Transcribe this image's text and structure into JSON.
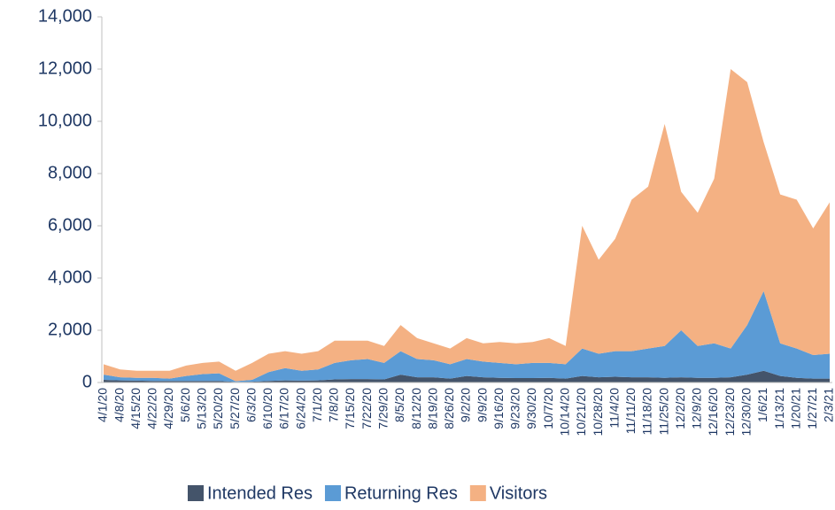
{
  "chart_data": {
    "type": "stacked_area",
    "categories": [
      "4/1/20",
      "4/8/20",
      "4/15/20",
      "4/22/20",
      "4/29/20",
      "5/6/20",
      "5/13/20",
      "5/20/20",
      "5/27/20",
      "6/3/20",
      "6/10/20",
      "6/17/20",
      "6/24/20",
      "7/1/20",
      "7/8/20",
      "7/15/20",
      "7/22/20",
      "7/29/20",
      "8/5/20",
      "8/12/20",
      "8/19/20",
      "8/26/20",
      "9/2/20",
      "9/9/20",
      "9/16/20",
      "9/23/20",
      "9/30/20",
      "10/7/20",
      "10/14/20",
      "10/21/20",
      "10/28/20",
      "11/4/20",
      "11/11/20",
      "11/18/20",
      "11/25/20",
      "12/2/20",
      "12/9/20",
      "12/16/20",
      "12/23/20",
      "12/30/20",
      "1/6/21",
      "1/13/21",
      "1/20/21",
      "1/27/21",
      "2/3/21"
    ],
    "series": [
      {
        "name": "Intended Res",
        "color": "#44546a",
        "values": [
          100,
          80,
          70,
          60,
          60,
          60,
          60,
          60,
          20,
          30,
          60,
          80,
          70,
          80,
          120,
          130,
          130,
          120,
          300,
          200,
          200,
          150,
          250,
          200,
          180,
          170,
          170,
          180,
          150,
          250,
          200,
          220,
          200,
          200,
          180,
          200,
          180,
          180,
          200,
          300,
          450,
          250,
          180,
          150,
          150
        ]
      },
      {
        "name": "Returning Res",
        "color": "#5b9bd5",
        "values": [
          200,
          120,
          110,
          120,
          90,
          190,
          260,
          290,
          30,
          70,
          340,
          470,
          380,
          420,
          630,
          720,
          770,
          630,
          900,
          700,
          650,
          550,
          650,
          600,
          570,
          530,
          580,
          570,
          550,
          1050,
          900,
          980,
          1000,
          1100,
          1220,
          1800,
          1220,
          1320,
          1100,
          1900,
          3050,
          1250,
          1120,
          900,
          950
        ]
      },
      {
        "name": "Visitors",
        "color": "#f4b183",
        "values": [
          400,
          300,
          270,
          270,
          300,
          400,
          430,
          450,
          400,
          650,
          700,
          650,
          650,
          700,
          850,
          750,
          700,
          650,
          1000,
          800,
          650,
          600,
          800,
          700,
          800,
          800,
          800,
          950,
          700,
          4700,
          3600,
          4300,
          5800,
          6200,
          8500,
          5300,
          5100,
          6300,
          10700,
          9300,
          5700,
          5700,
          5700,
          4850,
          5800
        ]
      }
    ],
    "ylim": [
      0,
      14000
    ],
    "yticks": [
      {
        "value": 0,
        "label": "0"
      },
      {
        "value": 2000,
        "label": "2,000"
      },
      {
        "value": 4000,
        "label": "4,000"
      },
      {
        "value": 6000,
        "label": "6,000"
      },
      {
        "value": 8000,
        "label": "8,000"
      },
      {
        "value": 10000,
        "label": "10,000"
      },
      {
        "value": 12000,
        "label": "12,000"
      },
      {
        "value": 14000,
        "label": "14,000"
      }
    ],
    "legend": "bottom"
  }
}
